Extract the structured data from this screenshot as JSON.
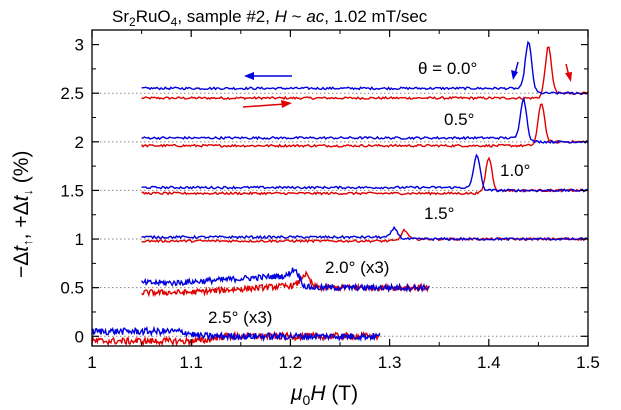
{
  "chart_data": {
    "type": "line",
    "title_parts": {
      "sr": "Sr",
      "sub2": "2",
      "ru": "RuO",
      "sub4": "4",
      "rest1": ", sample #2, ",
      "h_italic": "H",
      "tilde": " ~ ",
      "ac_italic": "ac",
      "rest2": ", 1.02 mT/sec"
    },
    "xlabel_parts": {
      "mu": "μ",
      "sub0": "0",
      "h": "H",
      "unit": " (T)"
    },
    "ylabel_parts": {
      "minus": "−Δ",
      "t1": "t",
      "up": "↑",
      "comma": ", +Δ",
      "t2": "t",
      "down": "↓",
      "unit": " (%)"
    },
    "xlim": [
      1.0,
      1.5
    ],
    "ylim": [
      -0.1,
      3.15
    ],
    "xticks": [
      "1",
      "1.1",
      "1.2",
      "1.3",
      "1.4",
      "1.5"
    ],
    "yticks": [
      "0",
      "0.5",
      "1",
      "1.5",
      "2",
      "2.5",
      "3"
    ],
    "baselines": [
      0,
      0.5,
      1.0,
      1.5,
      2.0,
      2.5
    ],
    "annotations": [
      "θ = 0.0°",
      "0.5°",
      "1.0°",
      "1.5°",
      "2.0° (x3)",
      "2.5° (x3)"
    ],
    "colors": {
      "sweep_down": "#0000dd",
      "sweep_up": "#e00000",
      "baseline": "#888888"
    },
    "series": [
      {
        "angle": "0.0°",
        "baseline": 2.5,
        "x_start": 1.05,
        "x_end": 1.5,
        "blue_peak_x": 1.44,
        "red_peak_x": 1.46,
        "peak_height": 0.5,
        "offset_before": 0.05,
        "noise": 0.012
      },
      {
        "angle": "0.5°",
        "baseline": 2.0,
        "x_start": 1.05,
        "x_end": 1.5,
        "blue_peak_x": 1.435,
        "red_peak_x": 1.453,
        "peak_height": 0.42,
        "offset_before": 0.04,
        "noise": 0.012
      },
      {
        "angle": "1.0°",
        "baseline": 1.5,
        "x_start": 1.05,
        "x_end": 1.5,
        "blue_peak_x": 1.388,
        "red_peak_x": 1.4,
        "peak_height": 0.35,
        "offset_before": 0.03,
        "noise": 0.012
      },
      {
        "angle": "1.5°",
        "baseline": 1.0,
        "x_start": 1.05,
        "x_end": 1.5,
        "blue_peak_x": 1.305,
        "red_peak_x": 1.315,
        "peak_height": 0.1,
        "offset_before": 0.02,
        "noise": 0.012
      },
      {
        "angle": "2.0° (x3)",
        "baseline": 0.5,
        "x_start": 1.05,
        "x_end": 1.34,
        "blue_peak_x": 1.205,
        "red_peak_x": 1.215,
        "peak_height": 0.12,
        "offset_before": 0.05,
        "noise": 0.03
      },
      {
        "angle": "2.5° (x3)",
        "baseline": 0.0,
        "x_start": 1.0,
        "x_end": 1.29,
        "blue_peak_x": 1.1,
        "red_peak_x": 1.12,
        "peak_height": 0.0,
        "offset_before": 0.05,
        "noise": 0.035
      }
    ]
  }
}
